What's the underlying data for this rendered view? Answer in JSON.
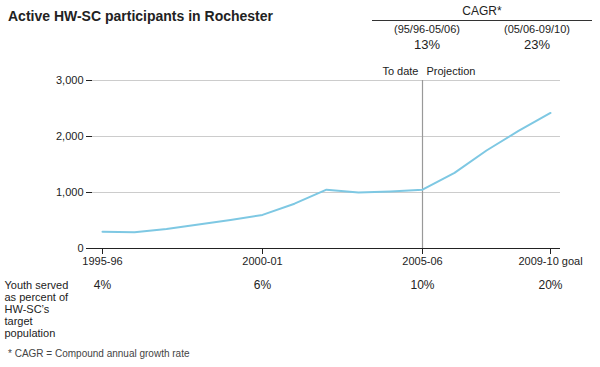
{
  "chart_data": {
    "type": "line",
    "title": "Active HW-SC participants in Rochester",
    "categories": [
      "1995-96",
      null,
      null,
      null,
      null,
      "2000-01",
      null,
      null,
      null,
      null,
      "2005-06",
      null,
      null,
      null,
      "2009-10 goal"
    ],
    "values": [
      300,
      290,
      350,
      430,
      510,
      600,
      800,
      1050,
      1000,
      1020,
      1050,
      1350,
      1750,
      2100,
      2420
    ],
    "color": "#7ec8e3",
    "ylim": [
      0,
      3000
    ],
    "yticks": [
      0,
      {
        "value": 1000,
        "label": "1,000"
      },
      {
        "value": 2000,
        "label": "2,000"
      },
      {
        "value": 3000,
        "label": "3,000"
      }
    ],
    "grid": true,
    "vline_category": "2005-06",
    "vline_labels": {
      "left": "To date",
      "right": "Projection"
    },
    "cagr": {
      "header": "CAGR*",
      "periods": [
        "(95/96-05/06)",
        "(05/06-09/10)"
      ],
      "values": [
        13,
        23
      ],
      "value_labels": [
        "13%",
        "23%"
      ]
    },
    "bottom_row": {
      "label_lines": [
        "Youth served",
        "as percent of",
        "HW-SC’s",
        "target",
        "population"
      ],
      "categories": [
        "1995-96",
        "2000-01",
        "2005-06",
        "2009-10 goal"
      ],
      "values": [
        4,
        6,
        10,
        20
      ],
      "value_labels": [
        "4%",
        "6%",
        "10%",
        "20%"
      ]
    },
    "footnote": "* CAGR = Compound annual growth rate"
  }
}
